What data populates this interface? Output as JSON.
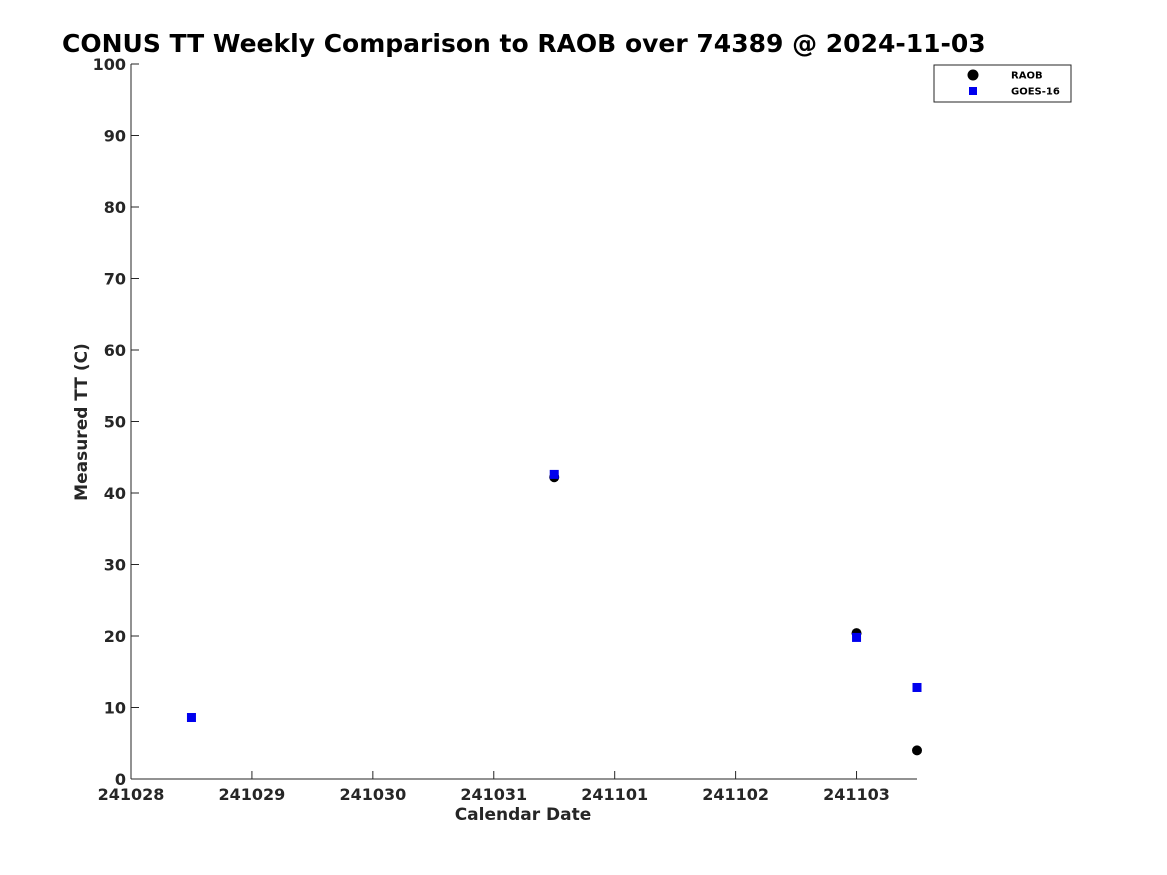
{
  "chart_data": {
    "type": "scatter",
    "title": "CONUS TT Weekly Comparison to RAOB over 74389 @ 2024-11-03",
    "xlabel": "Calendar Date",
    "ylabel": "Measured TT (C)",
    "xlim": [
      "2024-10-28",
      "2024-11-03 12:00"
    ],
    "ylim": [
      0,
      100
    ],
    "x_ticks": [
      {
        "date": "2024-10-28",
        "label": "241028"
      },
      {
        "date": "2024-10-29",
        "label": "241029"
      },
      {
        "date": "2024-10-30",
        "label": "241030"
      },
      {
        "date": "2024-10-31",
        "label": "241031"
      },
      {
        "date": "2024-11-01",
        "label": "241101"
      },
      {
        "date": "2024-11-02",
        "label": "241102"
      },
      {
        "date": "2024-11-03",
        "label": "241103"
      }
    ],
    "y_ticks": [
      0,
      10,
      20,
      30,
      40,
      50,
      60,
      70,
      80,
      90,
      100
    ],
    "grid": false,
    "legend_position": "top-right",
    "series": [
      {
        "name": "RAOB",
        "marker": "circle",
        "color": "#000000",
        "points": [
          {
            "x": "2024-10-31 12:00",
            "y": 42.2
          },
          {
            "x": "2024-11-03 00:00",
            "y": 20.4
          },
          {
            "x": "2024-11-03 12:00",
            "y": 4.0
          }
        ]
      },
      {
        "name": "GOES-16",
        "marker": "square",
        "color": "#0000ee",
        "points": [
          {
            "x": "2024-10-28 12:00",
            "y": 8.6
          },
          {
            "x": "2024-10-31 12:00",
            "y": 42.6
          },
          {
            "x": "2024-11-03 00:00",
            "y": 19.8
          },
          {
            "x": "2024-11-03 12:00",
            "y": 12.8
          }
        ]
      }
    ]
  }
}
